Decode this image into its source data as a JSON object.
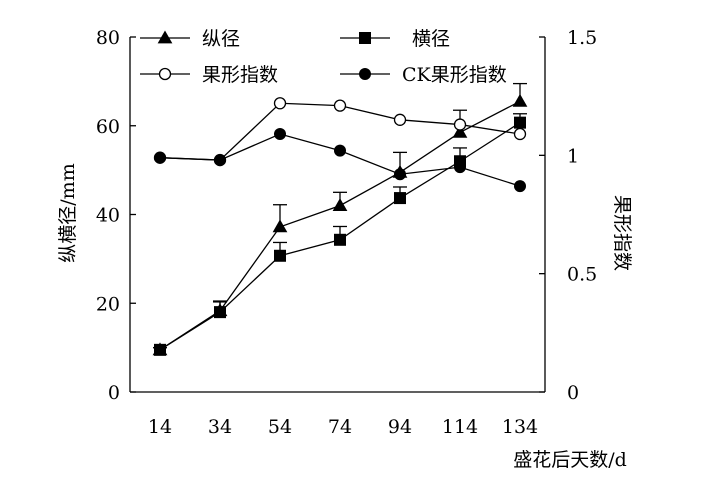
{
  "chart_data": {
    "type": "line",
    "x": [
      14,
      34,
      54,
      74,
      94,
      114,
      134
    ],
    "xlabel": "盛花后天数/d",
    "ylabel_left": "纵横径/mm",
    "ylabel_right": "果形指数",
    "ylim_left": [
      0,
      80
    ],
    "ylim_right": [
      0,
      1.5
    ],
    "yticks_left": [
      "0",
      "20",
      "40",
      "60",
      "80"
    ],
    "yticks_right": [
      "0",
      "0.5",
      "1",
      "1.5"
    ],
    "xticks": [
      "14",
      "34",
      "54",
      "74",
      "94",
      "114",
      "134"
    ],
    "grid": false,
    "legend_placement": "top",
    "series": [
      {
        "name": "纵径",
        "axis": "left",
        "marker": "triangle-filled",
        "values": [
          9.5,
          18.3,
          37.2,
          42.0,
          49.5,
          58.5,
          65.5
        ],
        "error": [
          0.5,
          2.0,
          5.0,
          3.0,
          4.5,
          5.0,
          4.0
        ]
      },
      {
        "name": "横径",
        "axis": "left",
        "marker": "square-filled",
        "values": [
          9.5,
          18.0,
          30.7,
          34.3,
          43.7,
          52.0,
          60.7
        ],
        "error": [
          0.5,
          2.5,
          3.0,
          3.0,
          2.5,
          3.0,
          2.0
        ]
      },
      {
        "name": "果形指数",
        "axis": "right",
        "marker": "circle-open",
        "values": [
          0.99,
          0.98,
          1.22,
          1.21,
          1.15,
          1.13,
          1.09
        ]
      },
      {
        "name": "CK果形指数",
        "axis": "right",
        "marker": "circle-filled",
        "values": [
          0.99,
          0.98,
          1.09,
          1.02,
          0.92,
          0.95,
          0.87
        ]
      }
    ]
  }
}
